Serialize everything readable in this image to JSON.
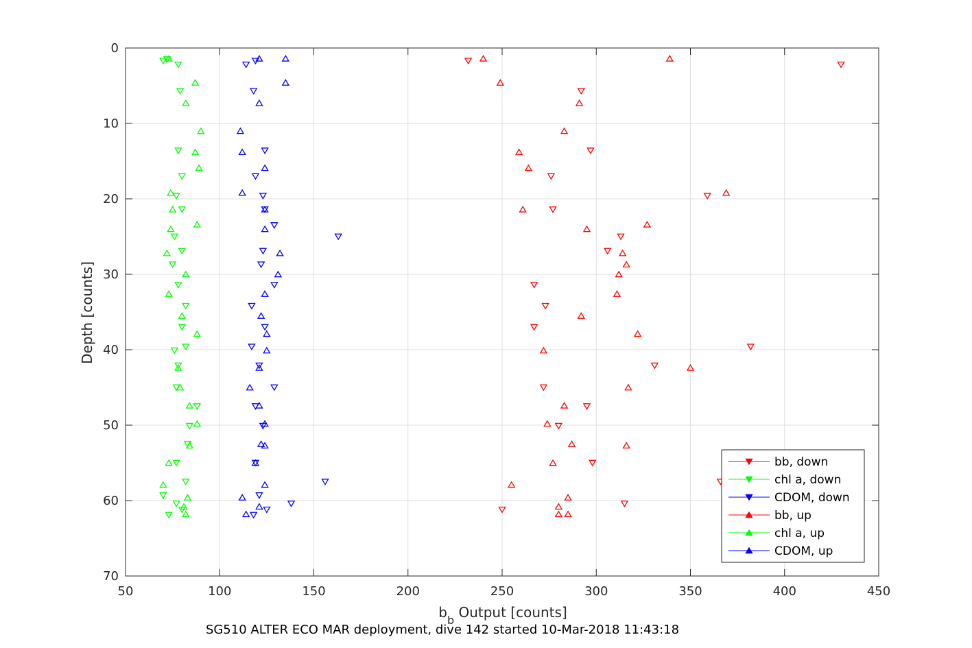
{
  "chart_data": {
    "type": "scatter",
    "title": "",
    "xlabel_main": "b",
    "xlabel_sub": "b",
    "xlabel_rest": " Output [counts]",
    "ylabel": "Depth [counts]",
    "caption": "SG510 ALTER ECO MAR deployment, dive 142 started 10-Mar-2018 11:43:18",
    "xlim": [
      50,
      450
    ],
    "ylim": [
      0,
      70
    ],
    "y_reversed": true,
    "grid": true,
    "legend_position": "bottom-right",
    "xticks": [
      "50",
      "100",
      "150",
      "200",
      "250",
      "300",
      "350",
      "400",
      "450"
    ],
    "yticks": [
      "0",
      "10",
      "20",
      "30",
      "40",
      "50",
      "60",
      "70"
    ],
    "series": [
      {
        "name": "bb, down",
        "color": "#ff0000",
        "marker": "down",
        "points": [
          [
            232,
            1.7
          ],
          [
            430,
            2.2
          ],
          [
            292,
            5.7
          ],
          [
            297,
            13.6
          ],
          [
            276,
            17.0
          ],
          [
            359,
            19.6
          ],
          [
            277,
            21.4
          ],
          [
            313,
            25.0
          ],
          [
            306,
            26.9
          ],
          [
            267,
            31.4
          ],
          [
            273,
            34.2
          ],
          [
            267,
            37.0
          ],
          [
            382,
            39.6
          ],
          [
            331,
            42.1
          ],
          [
            272,
            45.0
          ],
          [
            295,
            47.5
          ],
          [
            280,
            50.1
          ],
          [
            298,
            55.0
          ],
          [
            366,
            57.5
          ],
          [
            315,
            60.4
          ],
          [
            250,
            61.2
          ]
        ]
      },
      {
        "name": "chl a, down",
        "color": "#00ff00",
        "marker": "down",
        "points": [
          [
            70,
            1.7
          ],
          [
            72,
            1.5
          ],
          [
            78,
            2.2
          ],
          [
            79,
            5.7
          ],
          [
            78,
            13.6
          ],
          [
            80,
            17.0
          ],
          [
            77,
            19.6
          ],
          [
            80,
            21.4
          ],
          [
            76,
            25.0
          ],
          [
            80,
            26.9
          ],
          [
            75,
            28.7
          ],
          [
            78,
            31.4
          ],
          [
            82,
            34.2
          ],
          [
            80,
            37.0
          ],
          [
            82,
            39.6
          ],
          [
            76,
            40.1
          ],
          [
            78,
            42.1
          ],
          [
            77,
            45.0
          ],
          [
            88,
            47.5
          ],
          [
            84,
            50.1
          ],
          [
            83,
            52.5
          ],
          [
            77,
            55.0
          ],
          [
            82,
            57.5
          ],
          [
            70,
            59.3
          ],
          [
            77,
            60.4
          ],
          [
            80,
            61.2
          ],
          [
            73,
            61.9
          ]
        ]
      },
      {
        "name": "CDOM, down",
        "color": "#0000ff",
        "marker": "down",
        "points": [
          [
            119,
            1.7
          ],
          [
            114,
            2.2
          ],
          [
            118,
            5.7
          ],
          [
            124,
            13.6
          ],
          [
            119,
            17.0
          ],
          [
            123,
            19.6
          ],
          [
            124,
            21.4
          ],
          [
            129,
            23.5
          ],
          [
            163,
            25.0
          ],
          [
            123,
            26.9
          ],
          [
            122,
            28.7
          ],
          [
            129,
            31.4
          ],
          [
            117,
            34.2
          ],
          [
            124,
            37.0
          ],
          [
            117,
            39.6
          ],
          [
            121,
            42.1
          ],
          [
            129,
            45.0
          ],
          [
            119,
            47.5
          ],
          [
            123,
            50.1
          ],
          [
            119,
            55.0
          ],
          [
            156,
            57.5
          ],
          [
            121,
            59.3
          ],
          [
            138,
            60.4
          ],
          [
            125,
            61.2
          ],
          [
            118,
            61.9
          ]
        ]
      },
      {
        "name": "bb, up",
        "color": "#ff0000",
        "marker": "up",
        "points": [
          [
            240,
            1.4
          ],
          [
            339,
            1.4
          ],
          [
            249,
            4.6
          ],
          [
            291,
            7.3
          ],
          [
            283,
            11.0
          ],
          [
            259,
            13.8
          ],
          [
            264,
            15.9
          ],
          [
            369,
            19.2
          ],
          [
            261,
            21.4
          ],
          [
            327,
            23.4
          ],
          [
            295,
            24.0
          ],
          [
            314,
            27.2
          ],
          [
            316,
            28.7
          ],
          [
            312,
            30.0
          ],
          [
            311,
            32.6
          ],
          [
            292,
            35.5
          ],
          [
            322,
            37.9
          ],
          [
            272,
            40.1
          ],
          [
            350,
            42.4
          ],
          [
            317,
            45.0
          ],
          [
            283,
            47.4
          ],
          [
            274,
            49.8
          ],
          [
            287,
            52.5
          ],
          [
            316,
            52.7
          ],
          [
            277,
            55.0
          ],
          [
            255,
            57.9
          ],
          [
            285,
            59.6
          ],
          [
            280,
            60.8
          ],
          [
            280,
            61.8
          ],
          [
            285,
            61.8
          ]
        ]
      },
      {
        "name": "chl a, up",
        "color": "#00ff00",
        "marker": "up",
        "points": [
          [
            73,
            1.4
          ],
          [
            87,
            4.6
          ],
          [
            82,
            7.3
          ],
          [
            90,
            11.0
          ],
          [
            87,
            13.8
          ],
          [
            89,
            15.9
          ],
          [
            74,
            19.2
          ],
          [
            75,
            21.4
          ],
          [
            88,
            23.4
          ],
          [
            74,
            24.0
          ],
          [
            72,
            27.2
          ],
          [
            82,
            30.0
          ],
          [
            73,
            32.6
          ],
          [
            80,
            35.5
          ],
          [
            88,
            37.9
          ],
          [
            78,
            42.4
          ],
          [
            79,
            45.0
          ],
          [
            84,
            47.4
          ],
          [
            88,
            49.8
          ],
          [
            84,
            52.7
          ],
          [
            73,
            55.0
          ],
          [
            70,
            57.9
          ],
          [
            83,
            59.6
          ],
          [
            81,
            60.8
          ],
          [
            82,
            61.8
          ]
        ]
      },
      {
        "name": "CDOM, up",
        "color": "#0000ff",
        "marker": "up",
        "points": [
          [
            135,
            1.4
          ],
          [
            121,
            1.4
          ],
          [
            135,
            4.6
          ],
          [
            121,
            7.3
          ],
          [
            111,
            11.0
          ],
          [
            112,
            13.8
          ],
          [
            124,
            15.9
          ],
          [
            112,
            19.2
          ],
          [
            124,
            21.4
          ],
          [
            124,
            24.0
          ],
          [
            132,
            27.2
          ],
          [
            131,
            30.0
          ],
          [
            124,
            32.6
          ],
          [
            122,
            35.5
          ],
          [
            125,
            37.9
          ],
          [
            125,
            40.1
          ],
          [
            121,
            42.4
          ],
          [
            116,
            45.0
          ],
          [
            121,
            47.4
          ],
          [
            124,
            49.8
          ],
          [
            122,
            52.5
          ],
          [
            124,
            52.7
          ],
          [
            119,
            55.0
          ],
          [
            124,
            57.9
          ],
          [
            112,
            59.6
          ],
          [
            121,
            60.8
          ],
          [
            114,
            61.8
          ]
        ]
      }
    ]
  }
}
